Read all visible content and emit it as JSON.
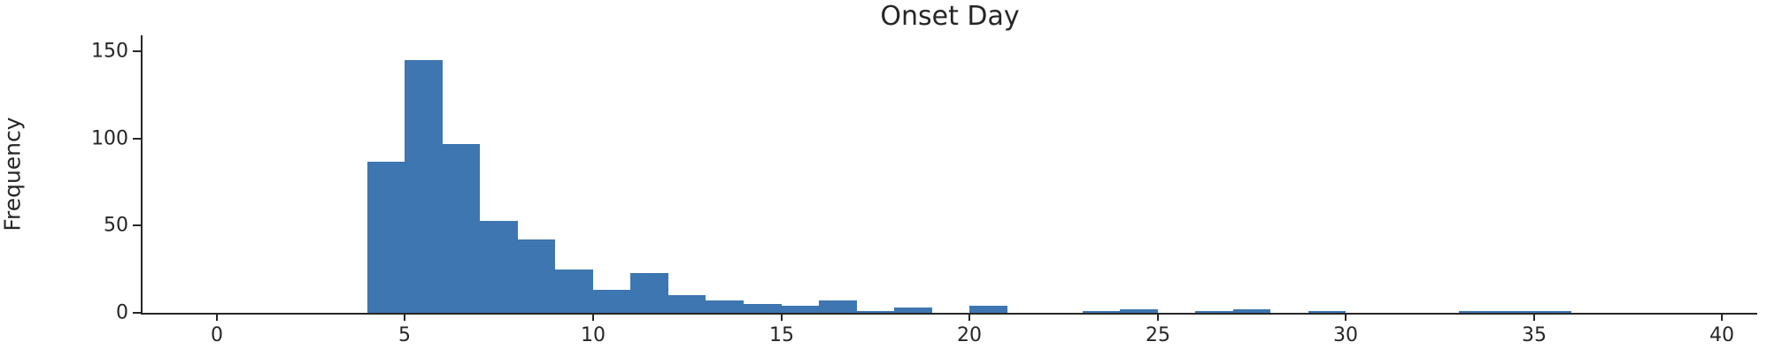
{
  "figure": {
    "title": "Onset Day"
  },
  "chart_data": {
    "type": "bar",
    "subtype": "histogram",
    "title": "Onset Day",
    "xlabel": "",
    "ylabel": "Frequency",
    "grid": false,
    "legend": "none",
    "bar_color": "#3d76b0",
    "axis_color": "#262626",
    "text_color": "#262626",
    "bin_width": 1,
    "bin_starts": [
      4,
      5,
      6,
      7,
      8,
      9,
      10,
      11,
      12,
      13,
      14,
      15,
      16,
      17,
      18,
      19,
      20,
      21,
      22,
      23,
      24,
      25,
      26,
      27,
      28,
      29,
      30,
      31,
      32,
      33,
      34,
      35
    ],
    "counts": [
      87,
      145,
      97,
      53,
      42,
      25,
      13,
      23,
      10,
      7,
      5,
      4,
      7,
      1,
      3,
      0,
      4,
      0,
      0,
      1,
      2,
      0,
      1,
      2,
      0,
      1,
      0,
      0,
      0,
      1,
      1,
      1
    ],
    "x_ticks": [
      0,
      5,
      10,
      15,
      20,
      25,
      30,
      35,
      40
    ],
    "y_ticks": [
      0,
      50,
      100,
      150
    ],
    "xlim": [
      -1.97,
      40.93
    ],
    "ylim": [
      0,
      159.3
    ]
  }
}
